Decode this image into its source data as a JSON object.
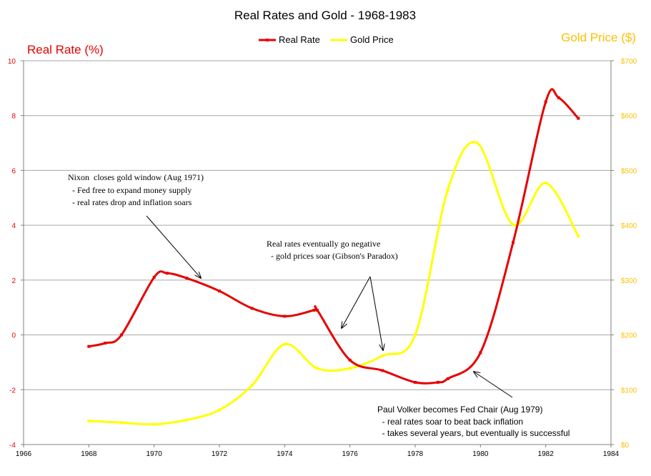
{
  "chart_data": {
    "type": "line",
    "title": "Real Rates and Gold - 1968-1983",
    "legend": {
      "placement": "top-center",
      "entries": [
        "Real Rate",
        "Gold Price"
      ]
    },
    "grid": {
      "horizontal": true,
      "vertical": false
    },
    "colors": {
      "real_rate": "#E60000",
      "gold_price": "#FFFF00",
      "left_axis": "#E60000",
      "right_axis": "#FFC000",
      "grid": "#A6A6A6",
      "axis": "#808080"
    },
    "x_axis": {
      "range": [
        1966,
        1984
      ],
      "ticks": [
        "1966",
        "1968",
        "1970",
        "1972",
        "1974",
        "1976",
        "1978",
        "1980",
        "1982",
        "1984"
      ]
    },
    "y_left": {
      "label": "Real Rate (%)",
      "range": [
        -4,
        10
      ],
      "ticks": [
        "-4",
        "-2",
        "0",
        "2",
        "4",
        "6",
        "8",
        "10"
      ]
    },
    "y_right": {
      "label": "Gold Price ($)",
      "range": [
        0,
        700
      ],
      "ticks": [
        "$0",
        "$100",
        "$200",
        "$300",
        "$400",
        "$500",
        "$600",
        "$700"
      ]
    },
    "series": [
      {
        "name": "Real Rate",
        "axis": "left",
        "x": [
          1968,
          1968.5,
          1969,
          1970,
          1970.4,
          1971,
          1972,
          1973,
          1974,
          1974.9,
          1975,
          1976,
          1977,
          1978,
          1978.7,
          1979,
          1980,
          1981,
          1982,
          1982.4,
          1983
        ],
        "y": [
          -0.42,
          -0.3,
          0.0,
          2.1,
          2.25,
          2.07,
          1.6,
          0.97,
          0.68,
          0.9,
          0.9,
          -0.92,
          -1.3,
          -1.73,
          -1.73,
          -1.6,
          -0.65,
          3.37,
          8.5,
          8.65,
          7.9
        ]
      },
      {
        "name": "Gold Price",
        "axis": "right",
        "x": [
          1968,
          1969,
          1970,
          1971,
          1972,
          1973,
          1974,
          1975,
          1976,
          1977,
          1978,
          1979,
          1979.9,
          1981,
          1982,
          1983
        ],
        "y": [
          43,
          40,
          37,
          45,
          63,
          108,
          183,
          139,
          139,
          162,
          200,
          465,
          550,
          401,
          477,
          380
        ]
      }
    ],
    "annotations": [
      {
        "lines": [
          "Nixon  closes gold window (Aug 1971)",
          "  - Fed free to expand money supply",
          "  - real rates drop and inflation soars"
        ]
      },
      {
        "lines": [
          "Real rates eventually go negative",
          "  - gold prices soar (Gibson's Paradox)"
        ]
      },
      {
        "lines": [
          "Paul Volker becomes Fed Chair (Aug 1979)",
          "  - real rates soar to beat back inflation",
          "  - takes several years, but eventually is successful"
        ]
      }
    ]
  }
}
